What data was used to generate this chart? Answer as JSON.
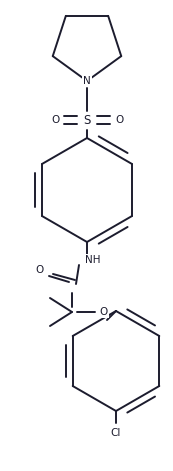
{
  "background_color": "#ffffff",
  "line_color": "#1c1c2e",
  "figsize": [
    1.73,
    4.71
  ],
  "dpi": 100,
  "lw": 1.4,
  "font_size": 7.5,
  "xlim": [
    0,
    173
  ],
  "ylim": [
    0,
    471
  ]
}
